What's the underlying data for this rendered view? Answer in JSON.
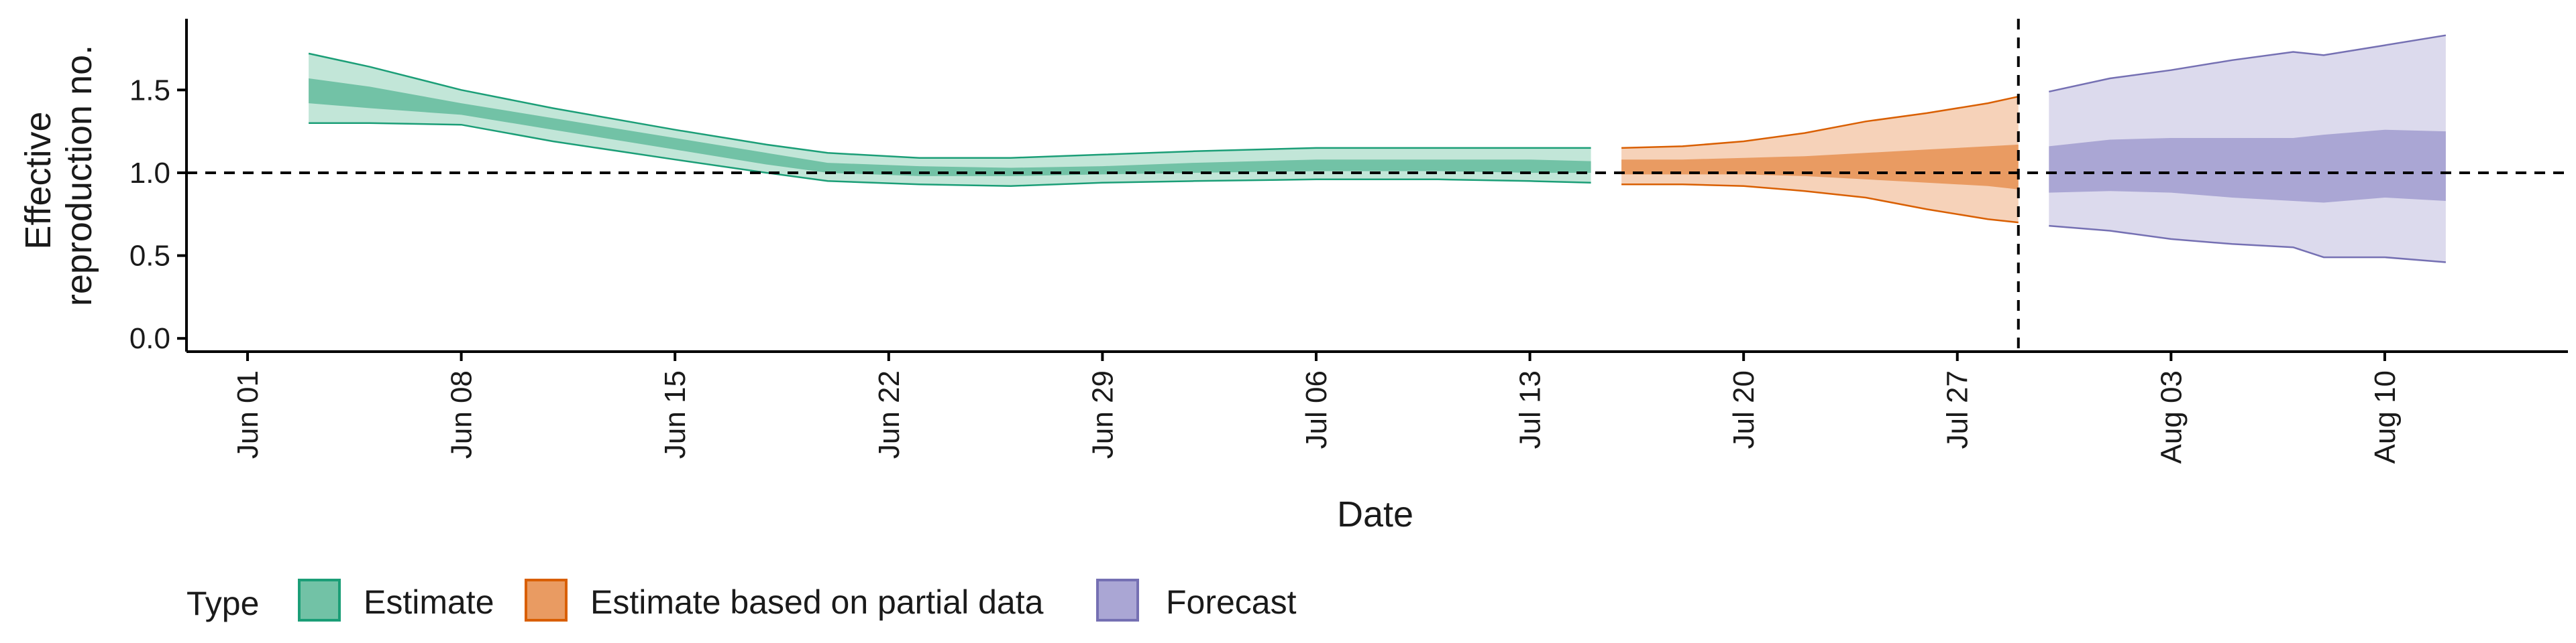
{
  "chart_data": {
    "type": "area",
    "xlabel": "Date",
    "ylabel_lines": [
      "Effective",
      "reproduction no."
    ],
    "x_ticks": [
      "2020-06-01",
      "2020-06-08",
      "2020-06-15",
      "2020-06-22",
      "2020-06-29",
      "2020-07-06",
      "2020-07-13",
      "2020-07-20",
      "2020-07-27",
      "2020-08-03",
      "2020-08-10"
    ],
    "x_tick_labels": [
      "Jun 01",
      "Jun 08",
      "Jun 15",
      "Jun 22",
      "Jun 29",
      "Jul 06",
      "Jul 13",
      "Jul 20",
      "Jul 27",
      "Aug 03",
      "Aug 10"
    ],
    "xlim": [
      "2020-05-30",
      "2020-08-16"
    ],
    "y_ticks": [
      0.0,
      0.5,
      1.0,
      1.5
    ],
    "y_tick_labels": [
      "0.0",
      "0.5",
      "1.0",
      "1.5"
    ],
    "ylim": [
      -0.08,
      1.93
    ],
    "reference_line_y": 1.0,
    "forecast_start_date": "2020-07-29",
    "legend": {
      "title": "Type",
      "placement": "bottom",
      "entries": [
        {
          "label": "Estimate",
          "color": "#1b9e77"
        },
        {
          "label": "Estimate based on partial data",
          "color": "#d95f02"
        },
        {
          "label": "Forecast",
          "color": "#7570b3"
        }
      ]
    },
    "series": [
      {
        "color": "#1b9e77",
        "fill_outer": "#c2e6d8",
        "fill_inner": "#72c2a6",
        "points": [
          {
            "x": "2020-06-03",
            "lo90": 1.3,
            "lo50": 1.42,
            "hi50": 1.57,
            "hi90": 1.72
          },
          {
            "x": "2020-06-05",
            "lo90": 1.3,
            "lo50": 1.39,
            "hi50": 1.52,
            "hi90": 1.64
          },
          {
            "x": "2020-06-08",
            "lo90": 1.29,
            "lo50": 1.35,
            "hi50": 1.42,
            "hi90": 1.5
          },
          {
            "x": "2020-06-11",
            "lo90": 1.19,
            "lo50": 1.26,
            "hi50": 1.33,
            "hi90": 1.39
          },
          {
            "x": "2020-06-15",
            "lo90": 1.08,
            "lo50": 1.14,
            "hi50": 1.21,
            "hi90": 1.26
          },
          {
            "x": "2020-06-18",
            "lo90": 1.0,
            "lo50": 1.05,
            "hi50": 1.12,
            "hi90": 1.17
          },
          {
            "x": "2020-06-20",
            "lo90": 0.95,
            "lo50": 1.0,
            "hi50": 1.06,
            "hi90": 1.12
          },
          {
            "x": "2020-06-23",
            "lo90": 0.93,
            "lo50": 0.98,
            "hi50": 1.04,
            "hi90": 1.09
          },
          {
            "x": "2020-06-26",
            "lo90": 0.92,
            "lo50": 0.98,
            "hi50": 1.03,
            "hi90": 1.09
          },
          {
            "x": "2020-06-29",
            "lo90": 0.94,
            "lo50": 0.99,
            "hi50": 1.04,
            "hi90": 1.11
          },
          {
            "x": "2020-07-02",
            "lo90": 0.95,
            "lo50": 1.0,
            "hi50": 1.06,
            "hi90": 1.13
          },
          {
            "x": "2020-07-06",
            "lo90": 0.96,
            "lo50": 1.01,
            "hi50": 1.08,
            "hi90": 1.15
          },
          {
            "x": "2020-07-10",
            "lo90": 0.96,
            "lo50": 1.01,
            "hi50": 1.08,
            "hi90": 1.15
          },
          {
            "x": "2020-07-13",
            "lo90": 0.95,
            "lo50": 1.0,
            "hi50": 1.08,
            "hi90": 1.15
          },
          {
            "x": "2020-07-15",
            "lo90": 0.94,
            "lo50": 1.0,
            "hi50": 1.07,
            "hi90": 1.15
          }
        ]
      },
      {
        "color": "#d95f02",
        "fill_outer": "#f6d2b9",
        "fill_inner": "#e99b62",
        "points": [
          {
            "x": "2020-07-16",
            "lo90": 0.93,
            "lo50": 0.99,
            "hi50": 1.08,
            "hi90": 1.15
          },
          {
            "x": "2020-07-18",
            "lo90": 0.93,
            "lo50": 0.99,
            "hi50": 1.08,
            "hi90": 1.16
          },
          {
            "x": "2020-07-20",
            "lo90": 0.92,
            "lo50": 0.99,
            "hi50": 1.09,
            "hi90": 1.19
          },
          {
            "x": "2020-07-22",
            "lo90": 0.89,
            "lo50": 0.98,
            "hi50": 1.1,
            "hi90": 1.24
          },
          {
            "x": "2020-07-24",
            "lo90": 0.85,
            "lo50": 0.96,
            "hi50": 1.12,
            "hi90": 1.31
          },
          {
            "x": "2020-07-26",
            "lo90": 0.78,
            "lo50": 0.94,
            "hi50": 1.14,
            "hi90": 1.36
          },
          {
            "x": "2020-07-28",
            "lo90": 0.72,
            "lo50": 0.92,
            "hi50": 1.16,
            "hi90": 1.42
          },
          {
            "x": "2020-07-29",
            "lo90": 0.7,
            "lo50": 0.9,
            "hi50": 1.17,
            "hi90": 1.46
          }
        ]
      },
      {
        "color": "#7570b3",
        "fill_outer": "#dcdaed",
        "fill_inner": "#aaa6d4",
        "points": [
          {
            "x": "2020-07-30",
            "lo90": 0.68,
            "lo50": 0.88,
            "hi50": 1.16,
            "hi90": 1.49
          },
          {
            "x": "2020-08-01",
            "lo90": 0.65,
            "lo50": 0.89,
            "hi50": 1.2,
            "hi90": 1.57
          },
          {
            "x": "2020-08-03",
            "lo90": 0.6,
            "lo50": 0.88,
            "hi50": 1.21,
            "hi90": 1.62
          },
          {
            "x": "2020-08-05",
            "lo90": 0.57,
            "lo50": 0.85,
            "hi50": 1.21,
            "hi90": 1.68
          },
          {
            "x": "2020-08-07",
            "lo90": 0.55,
            "lo50": 0.83,
            "hi50": 1.21,
            "hi90": 1.73
          },
          {
            "x": "2020-08-08",
            "lo90": 0.49,
            "lo50": 0.82,
            "hi50": 1.23,
            "hi90": 1.71
          },
          {
            "x": "2020-08-10",
            "lo90": 0.49,
            "lo50": 0.85,
            "hi50": 1.26,
            "hi90": 1.77
          },
          {
            "x": "2020-08-12",
            "lo90": 0.46,
            "lo50": 0.83,
            "hi50": 1.25,
            "hi90": 1.83
          }
        ]
      }
    ]
  }
}
